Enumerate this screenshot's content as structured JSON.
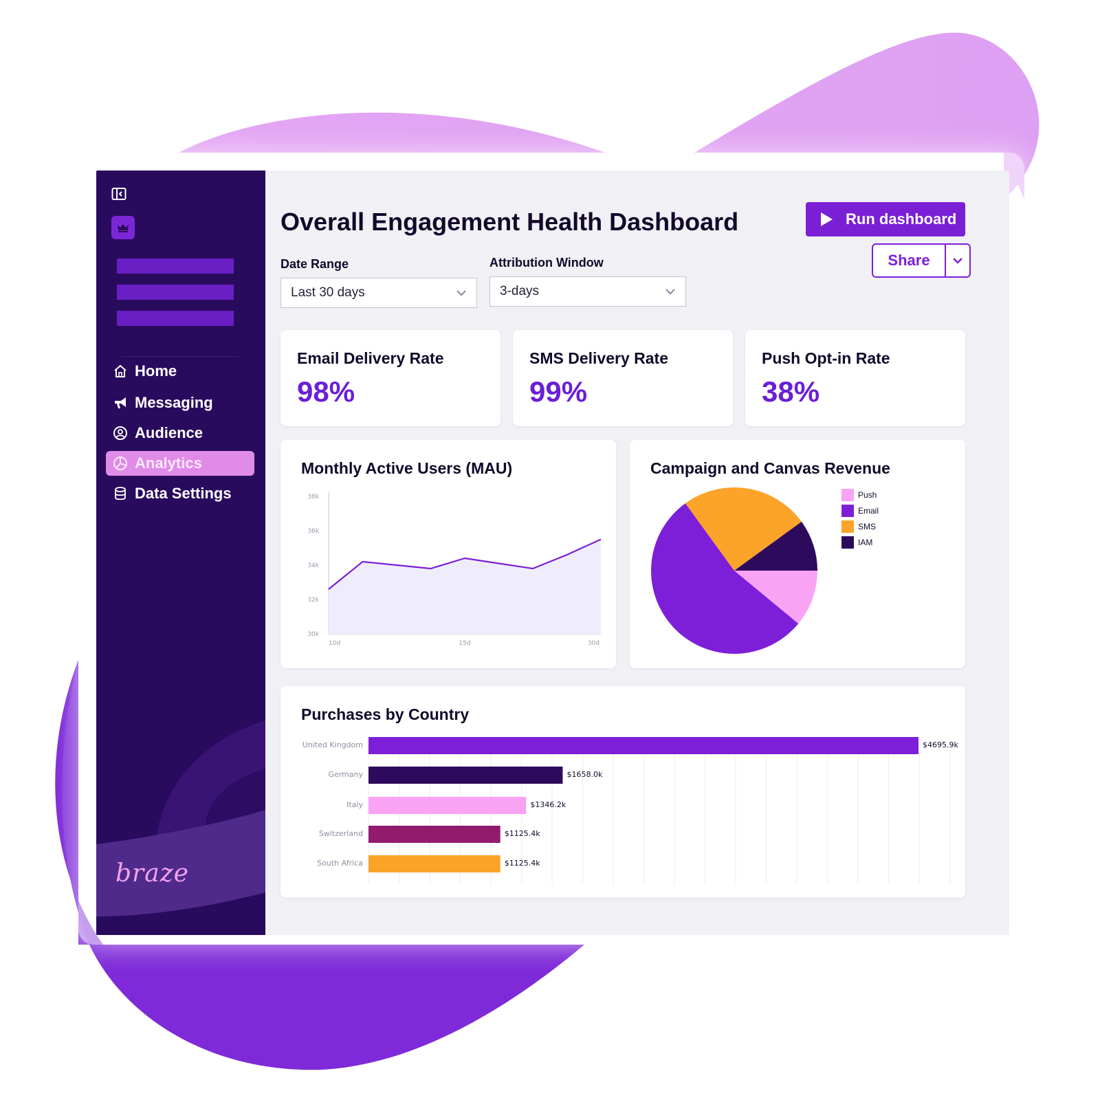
{
  "colors": {
    "accent": "#7b1fd6",
    "sidebar": "#290b5e",
    "kpi_value": "#6a1fd6",
    "push": "#f9a3f5",
    "email": "#7d1fd8",
    "sms": "#fca329",
    "iam": "#2e0a5c",
    "switzerland": "#921b6e"
  },
  "sidebar": {
    "toggle_icon": "sidebar-collapse-icon",
    "logo_icon": "crown-icon",
    "items": [
      {
        "label": "Home",
        "icon": "home-icon",
        "active": false
      },
      {
        "label": "Messaging",
        "icon": "megaphone-icon",
        "active": false
      },
      {
        "label": "Audience",
        "icon": "user-circle-icon",
        "active": false
      },
      {
        "label": "Analytics",
        "icon": "pie-chart-icon",
        "active": true
      },
      {
        "label": "Data Settings",
        "icon": "database-icon",
        "active": false
      }
    ],
    "brand": "braze"
  },
  "header": {
    "title": "Overall Engagement Health Dashboard",
    "run_label": "Run dashboard",
    "share_label": "Share"
  },
  "filters": {
    "date_range": {
      "label": "Date Range",
      "value": "Last 30 days"
    },
    "attribution": {
      "label": "Attribution Window",
      "value": "3-days"
    }
  },
  "kpis": [
    {
      "label": "Email Delivery Rate",
      "value": "98%"
    },
    {
      "label": "SMS Delivery Rate",
      "value": "99%"
    },
    {
      "label": "Push Opt-in Rate",
      "value": "38%"
    }
  ],
  "chart_data": [
    {
      "type": "area",
      "title": "Monthly Active Users (MAU)",
      "x_ticks": [
        "10d",
        "15d",
        "30d"
      ],
      "y_ticks": [
        "38k",
        "36k",
        "34k",
        "32k",
        "30k"
      ],
      "ylim": [
        30000,
        38000
      ],
      "x": [
        0,
        1,
        2,
        3,
        4,
        5,
        6,
        7,
        8
      ],
      "values": [
        32600,
        34200,
        34000,
        33800,
        34400,
        34100,
        33800,
        34600,
        35500
      ],
      "grid": false
    },
    {
      "type": "pie",
      "title": "Campaign and Canvas Revenue",
      "legend_position": "right",
      "slices": [
        {
          "label": "Push",
          "value": 11
        },
        {
          "label": "Email",
          "value": 54
        },
        {
          "label": "SMS",
          "value": 25
        },
        {
          "label": "IAM",
          "value": 10
        }
      ]
    },
    {
      "type": "bar",
      "orientation": "horizontal",
      "title": "Purchases by Country",
      "categories": [
        "United Kingdom",
        "Germany",
        "Italy",
        "Switzerland",
        "South Africa"
      ],
      "values": [
        4695.9,
        1658.0,
        1346.2,
        1125.4,
        1125.4
      ],
      "value_labels": [
        "$4695.9k",
        "$1658.0k",
        "$1346.2k",
        "$1125.4k",
        "$1125.4k"
      ],
      "grid": true
    }
  ]
}
